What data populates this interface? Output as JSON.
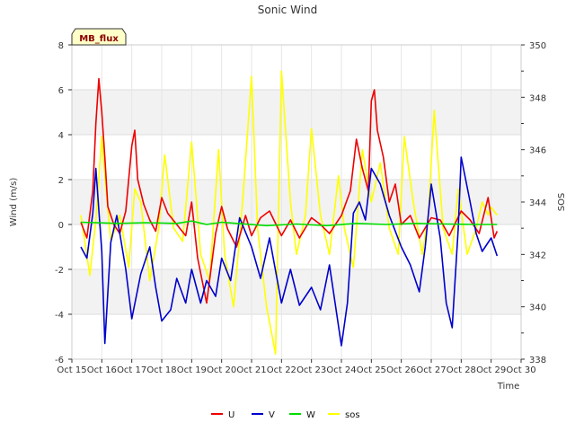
{
  "chart_data": {
    "type": "line",
    "title": "Sonic Wind",
    "badge": "MB_flux",
    "xlabel": "Time",
    "ylabel_left": "Wind (m/s)",
    "ylabel_right": "SOS",
    "x_ticks": [
      "Oct 15",
      "Oct 16",
      "Oct 17",
      "Oct 18",
      "Oct 19",
      "Oct 20",
      "Oct 21",
      "Oct 22",
      "Oct 23",
      "Oct 24",
      "Oct 25",
      "Oct 26",
      "Oct 27",
      "Oct 28",
      "Oct 29",
      "Oct 30"
    ],
    "xlim": [
      15,
      30
    ],
    "ylim_left": [
      -6,
      8
    ],
    "ylim_right": [
      338,
      350
    ],
    "yticks_left": [
      -6,
      -4,
      -2,
      0,
      2,
      4,
      6,
      8
    ],
    "yticks_right": [
      338,
      340,
      342,
      344,
      346,
      348,
      350
    ],
    "grid": true,
    "legend_position": "bottom-center",
    "series": [
      {
        "name": "U",
        "color": "#ee0000",
        "axis": "left",
        "x": [
          15.3,
          15.5,
          15.7,
          15.8,
          15.9,
          16.0,
          16.1,
          16.2,
          16.4,
          16.6,
          16.8,
          17.0,
          17.1,
          17.2,
          17.4,
          17.6,
          17.8,
          18.0,
          18.2,
          18.5,
          18.8,
          19.0,
          19.2,
          19.5,
          19.8,
          20.0,
          20.2,
          20.5,
          20.8,
          21.0,
          21.3,
          21.6,
          22.0,
          22.3,
          22.6,
          23.0,
          23.3,
          23.6,
          24.0,
          24.3,
          24.5,
          24.7,
          24.9,
          25.0,
          25.1,
          25.2,
          25.4,
          25.6,
          25.8,
          26.0,
          26.3,
          26.6,
          27.0,
          27.3,
          27.6,
          28.0,
          28.3,
          28.6,
          28.9,
          29.1,
          29.2
        ],
        "values": [
          0.1,
          -0.6,
          1.5,
          4.5,
          6.5,
          5.0,
          3.0,
          0.8,
          0.0,
          -0.4,
          0.6,
          3.5,
          4.2,
          2.0,
          0.9,
          0.2,
          -0.3,
          1.2,
          0.5,
          0.0,
          -0.5,
          1.0,
          -1.5,
          -3.5,
          -0.4,
          0.8,
          -0.2,
          -1.0,
          0.4,
          -0.5,
          0.3,
          0.6,
          -0.5,
          0.2,
          -0.6,
          0.3,
          0.0,
          -0.4,
          0.4,
          1.5,
          3.8,
          2.5,
          1.5,
          5.5,
          6.0,
          4.2,
          3.0,
          1.0,
          1.8,
          0.0,
          0.4,
          -0.6,
          0.3,
          0.2,
          -0.5,
          0.6,
          0.2,
          -0.4,
          1.2,
          -0.6,
          -0.3
        ]
      },
      {
        "name": "V",
        "color": "#0000cc",
        "axis": "left",
        "x": [
          15.3,
          15.5,
          15.7,
          15.8,
          16.0,
          16.1,
          16.3,
          16.5,
          16.8,
          17.0,
          17.3,
          17.6,
          17.8,
          18.0,
          18.3,
          18.5,
          18.8,
          19.0,
          19.3,
          19.5,
          19.8,
          20.0,
          20.3,
          20.6,
          21.0,
          21.3,
          21.6,
          22.0,
          22.3,
          22.6,
          23.0,
          23.3,
          23.6,
          24.0,
          24.2,
          24.4,
          24.6,
          24.8,
          25.0,
          25.3,
          25.6,
          26.0,
          26.3,
          26.6,
          26.8,
          27.0,
          27.3,
          27.5,
          27.7,
          27.9,
          28.0,
          28.3,
          28.5,
          28.7,
          29.0,
          29.2
        ],
        "values": [
          -1.0,
          -1.5,
          0.5,
          2.5,
          -1.2,
          -5.3,
          -0.8,
          0.4,
          -2.0,
          -4.2,
          -2.2,
          -1.0,
          -2.8,
          -4.3,
          -3.8,
          -2.4,
          -3.5,
          -2.0,
          -3.5,
          -2.5,
          -3.2,
          -1.5,
          -2.5,
          0.3,
          -1.0,
          -2.4,
          -0.6,
          -3.5,
          -2.0,
          -3.6,
          -2.8,
          -3.8,
          -1.8,
          -5.4,
          -3.5,
          0.5,
          1.0,
          0.2,
          2.5,
          1.8,
          0.4,
          -1.0,
          -1.8,
          -3.0,
          -1.0,
          1.8,
          -0.6,
          -3.5,
          -4.6,
          -0.2,
          3.0,
          1.0,
          -0.4,
          -1.2,
          -0.6,
          -1.4
        ]
      },
      {
        "name": "W",
        "color": "#00dd00",
        "axis": "left",
        "x": [
          15.3,
          16.5,
          17.5,
          18.5,
          19.0,
          19.5,
          20.0,
          20.5,
          21.5,
          22.5,
          23.5,
          24.5,
          25.5,
          26.5,
          27.5,
          28.5,
          29.2
        ],
        "values": [
          0.1,
          0.05,
          0.08,
          0.05,
          0.15,
          0.0,
          0.1,
          0.05,
          -0.05,
          0.02,
          -0.05,
          0.05,
          0.0,
          0.05,
          0.02,
          0.0,
          0.0
        ]
      },
      {
        "name": "sos",
        "color": "#ffff00",
        "axis": "right",
        "x": [
          15.3,
          15.6,
          15.8,
          16.0,
          16.1,
          16.3,
          16.6,
          16.9,
          17.1,
          17.3,
          17.6,
          17.9,
          18.1,
          18.4,
          18.7,
          19.0,
          19.3,
          19.6,
          19.9,
          20.1,
          20.4,
          20.7,
          21.0,
          21.2,
          21.5,
          21.8,
          22.0,
          22.3,
          22.5,
          22.8,
          23.0,
          23.3,
          23.6,
          23.9,
          24.1,
          24.4,
          24.7,
          25.0,
          25.3,
          25.6,
          25.9,
          26.1,
          26.4,
          26.7,
          26.9,
          27.1,
          27.4,
          27.7,
          27.9,
          28.2,
          28.5,
          28.7,
          28.9,
          29.0,
          29.2
        ],
        "values": [
          343.5,
          341.2,
          343.3,
          346.5,
          345.0,
          342.5,
          343.5,
          341.5,
          344.5,
          344.0,
          341.0,
          343.0,
          345.8,
          343.0,
          342.5,
          346.3,
          342.0,
          341.0,
          346.0,
          342.0,
          340.0,
          344.0,
          348.8,
          343.0,
          340.0,
          338.2,
          349.0,
          344.0,
          342.0,
          343.5,
          346.8,
          343.5,
          342.0,
          345.0,
          343.0,
          341.5,
          346.0,
          344.0,
          345.5,
          343.0,
          342.0,
          346.5,
          344.0,
          342.0,
          343.5,
          347.5,
          343.0,
          342.0,
          344.5,
          342.0,
          343.0,
          344.0,
          343.5,
          343.8,
          343.5
        ]
      }
    ]
  }
}
